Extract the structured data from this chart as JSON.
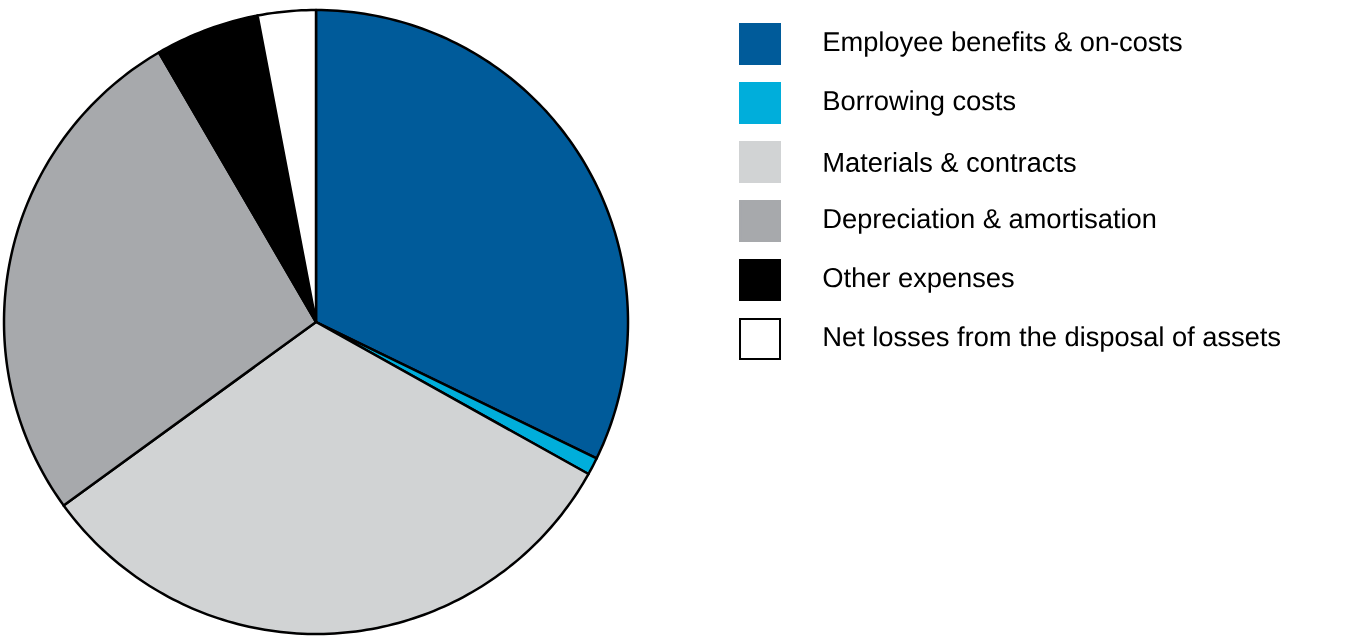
{
  "chart_data": {
    "type": "pie",
    "categories": [
      "Employee benefits & on-costs",
      "Borrowing costs",
      "Materials & contracts",
      "Depreciation & amortisation",
      "Other expenses",
      "Net losses from the disposal of assets"
    ],
    "values": [
      32.2,
      0.9,
      31.9,
      26.6,
      5.4,
      3.0
    ],
    "colors": [
      "#005b9a",
      "#00aedb",
      "#d1d3d4",
      "#a7a9ac",
      "#000000",
      "#ffffff"
    ],
    "legend": "right"
  }
}
